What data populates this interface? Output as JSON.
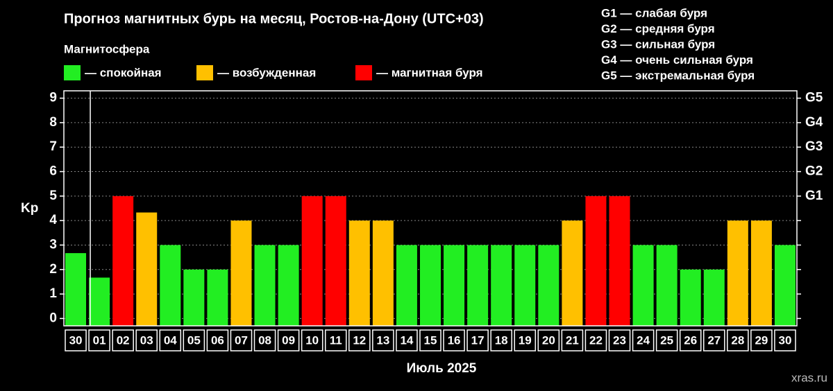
{
  "chart_data": {
    "type": "bar",
    "title": "Прогноз магнитных бурь на месяц, Ростов-на-Дону (UTC+03)",
    "legend_title": "Магнитосфера",
    "legend": [
      {
        "name": "— спокойная",
        "color": "#22ee22"
      },
      {
        "name": "— возбужденная",
        "color": "#ffc000"
      },
      {
        "name": "— магнитная буря",
        "color": "#ff0000"
      }
    ],
    "g_scale_notes": [
      "G1 — слабая буря",
      "G2 — средняя буря",
      "G3 — сильная буря",
      "G4 — очень сильная буря",
      "G5 — экстремальная буря"
    ],
    "categories": [
      "30",
      "01",
      "02",
      "03",
      "04",
      "05",
      "06",
      "07",
      "08",
      "09",
      "10",
      "11",
      "12",
      "13",
      "14",
      "15",
      "16",
      "17",
      "18",
      "19",
      "20",
      "21",
      "22",
      "23",
      "24",
      "25",
      "26",
      "27",
      "28",
      "29",
      "30"
    ],
    "values": [
      2.67,
      1.67,
      5,
      4.33,
      3,
      2,
      2,
      4,
      3,
      3,
      5,
      5,
      4,
      4,
      3,
      3,
      3,
      3,
      3,
      3,
      3,
      4,
      5,
      5,
      3,
      3,
      2,
      2,
      4,
      4,
      3
    ],
    "bar_colors": [
      "#22ee22",
      "#22ee22",
      "#ff0000",
      "#ffc000",
      "#22ee22",
      "#22ee22",
      "#22ee22",
      "#ffc000",
      "#22ee22",
      "#22ee22",
      "#ff0000",
      "#ff0000",
      "#ffc000",
      "#ffc000",
      "#22ee22",
      "#22ee22",
      "#22ee22",
      "#22ee22",
      "#22ee22",
      "#22ee22",
      "#22ee22",
      "#ffc000",
      "#ff0000",
      "#ff0000",
      "#22ee22",
      "#22ee22",
      "#22ee22",
      "#22ee22",
      "#ffc000",
      "#ffc000",
      "#22ee22"
    ],
    "ylabel": "Kp",
    "xlabel": "Июль 2025",
    "ylim": [
      -0.3,
      9.3
    ],
    "yticks": [
      0,
      1,
      2,
      3,
      4,
      5,
      6,
      7,
      8,
      9
    ],
    "y2lim": [
      -0.3,
      9.3
    ],
    "y2ticks": [
      {
        "value": 5,
        "label": "G1"
      },
      {
        "value": 6,
        "label": "G2"
      },
      {
        "value": 7,
        "label": "G3"
      },
      {
        "value": 8,
        "label": "G4"
      },
      {
        "value": 9,
        "label": "G5"
      }
    ],
    "grid": true,
    "watermark": "xras.ru"
  }
}
